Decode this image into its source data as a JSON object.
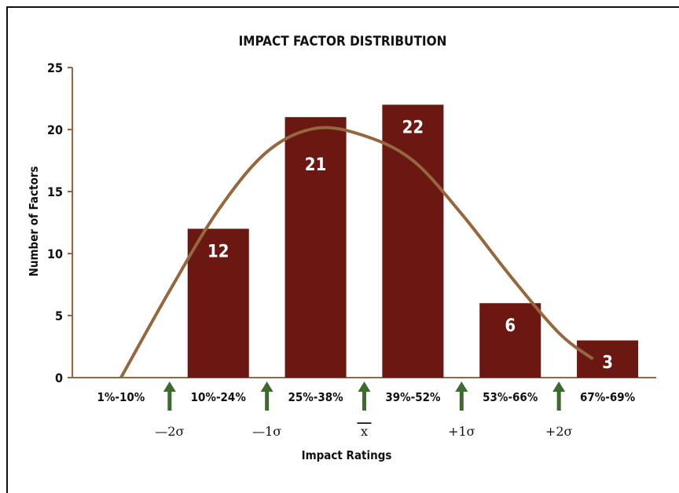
{
  "chart_data": {
    "type": "bar",
    "title": "IMPACT FACTOR DISTRIBUTION",
    "xlabel": "Impact Ratings",
    "ylabel": "Number of Factors",
    "ylim": [
      0,
      25
    ],
    "yticks": [
      0,
      5,
      10,
      15,
      20,
      25
    ],
    "grid": false,
    "categories": [
      "1%-10%",
      "10%-24%",
      "25%-38%",
      "39%-52%",
      "53%-66%",
      "67%-69%"
    ],
    "values": [
      0,
      12,
      21,
      22,
      6,
      3
    ],
    "data_labels": [
      "",
      "12",
      "21",
      "22",
      "6",
      "3"
    ],
    "bar_color": "#6b1712",
    "curve": {
      "color": "#94673f",
      "points": [
        [
          0,
          0
        ],
        [
          0.5,
          7
        ],
        [
          1,
          13.5
        ],
        [
          1.5,
          18.2
        ],
        [
          2,
          20.1
        ],
        [
          2.5,
          19.5
        ],
        [
          3,
          17.5
        ],
        [
          3.5,
          13.2
        ],
        [
          4,
          8.2
        ],
        [
          4.5,
          3.6
        ],
        [
          4.85,
          1.5
        ]
      ]
    },
    "markers": {
      "color": "#3d6b2f",
      "items": [
        {
          "pos": 0.5,
          "label": "—2σ"
        },
        {
          "pos": 1.5,
          "label": "—1σ"
        },
        {
          "pos": 2.5,
          "label": "x"
        },
        {
          "pos": 3.5,
          "label": "+1σ"
        },
        {
          "pos": 4.5,
          "label": "+2σ"
        }
      ]
    }
  }
}
